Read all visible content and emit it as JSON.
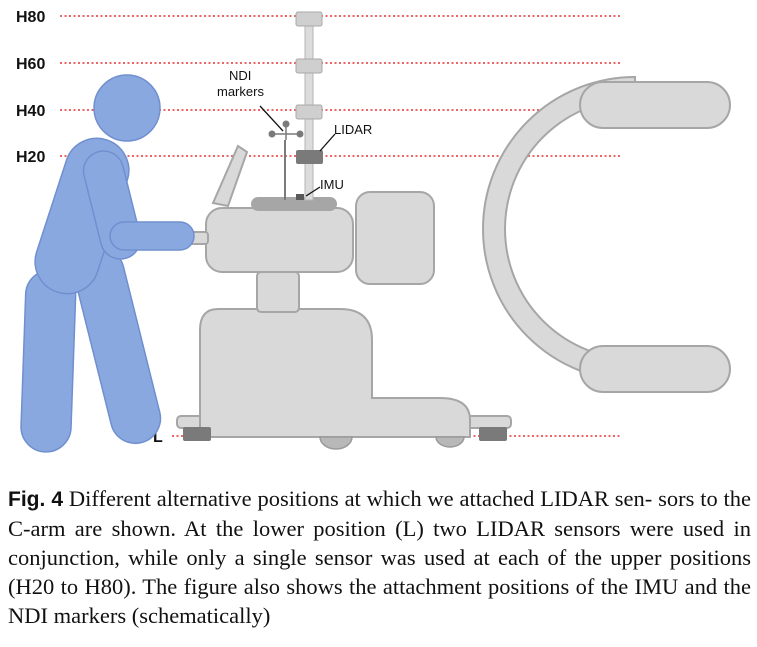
{
  "figure": {
    "height_labels": [
      "H80",
      "H60",
      "H40",
      "H20",
      "L"
    ],
    "callouts": {
      "ndi_line1": "NDI",
      "ndi_line2": "markers",
      "lidar": "LIDAR",
      "imu": "IMU"
    },
    "colors": {
      "person": "#8aa8e0",
      "person_outline": "#6f8fcf",
      "machine": "#d9d9d9",
      "machine_outline": "#a6a6a6",
      "sensor": "#7a7a7a",
      "guide_line": "#e53030"
    }
  },
  "caption": {
    "label": "Fig. 4",
    "lines": [
      "Different alternative positions at which we attached LIDAR sen-",
      "sors to the C-arm are shown. At the lower position (L) two LIDAR",
      "sensors were used in conjunction, while only a single sensor was used",
      "at each of the upper positions (H20 to H80). The figure also shows the",
      "attachment positions of the IMU and the NDI markers (schematically)"
    ]
  }
}
